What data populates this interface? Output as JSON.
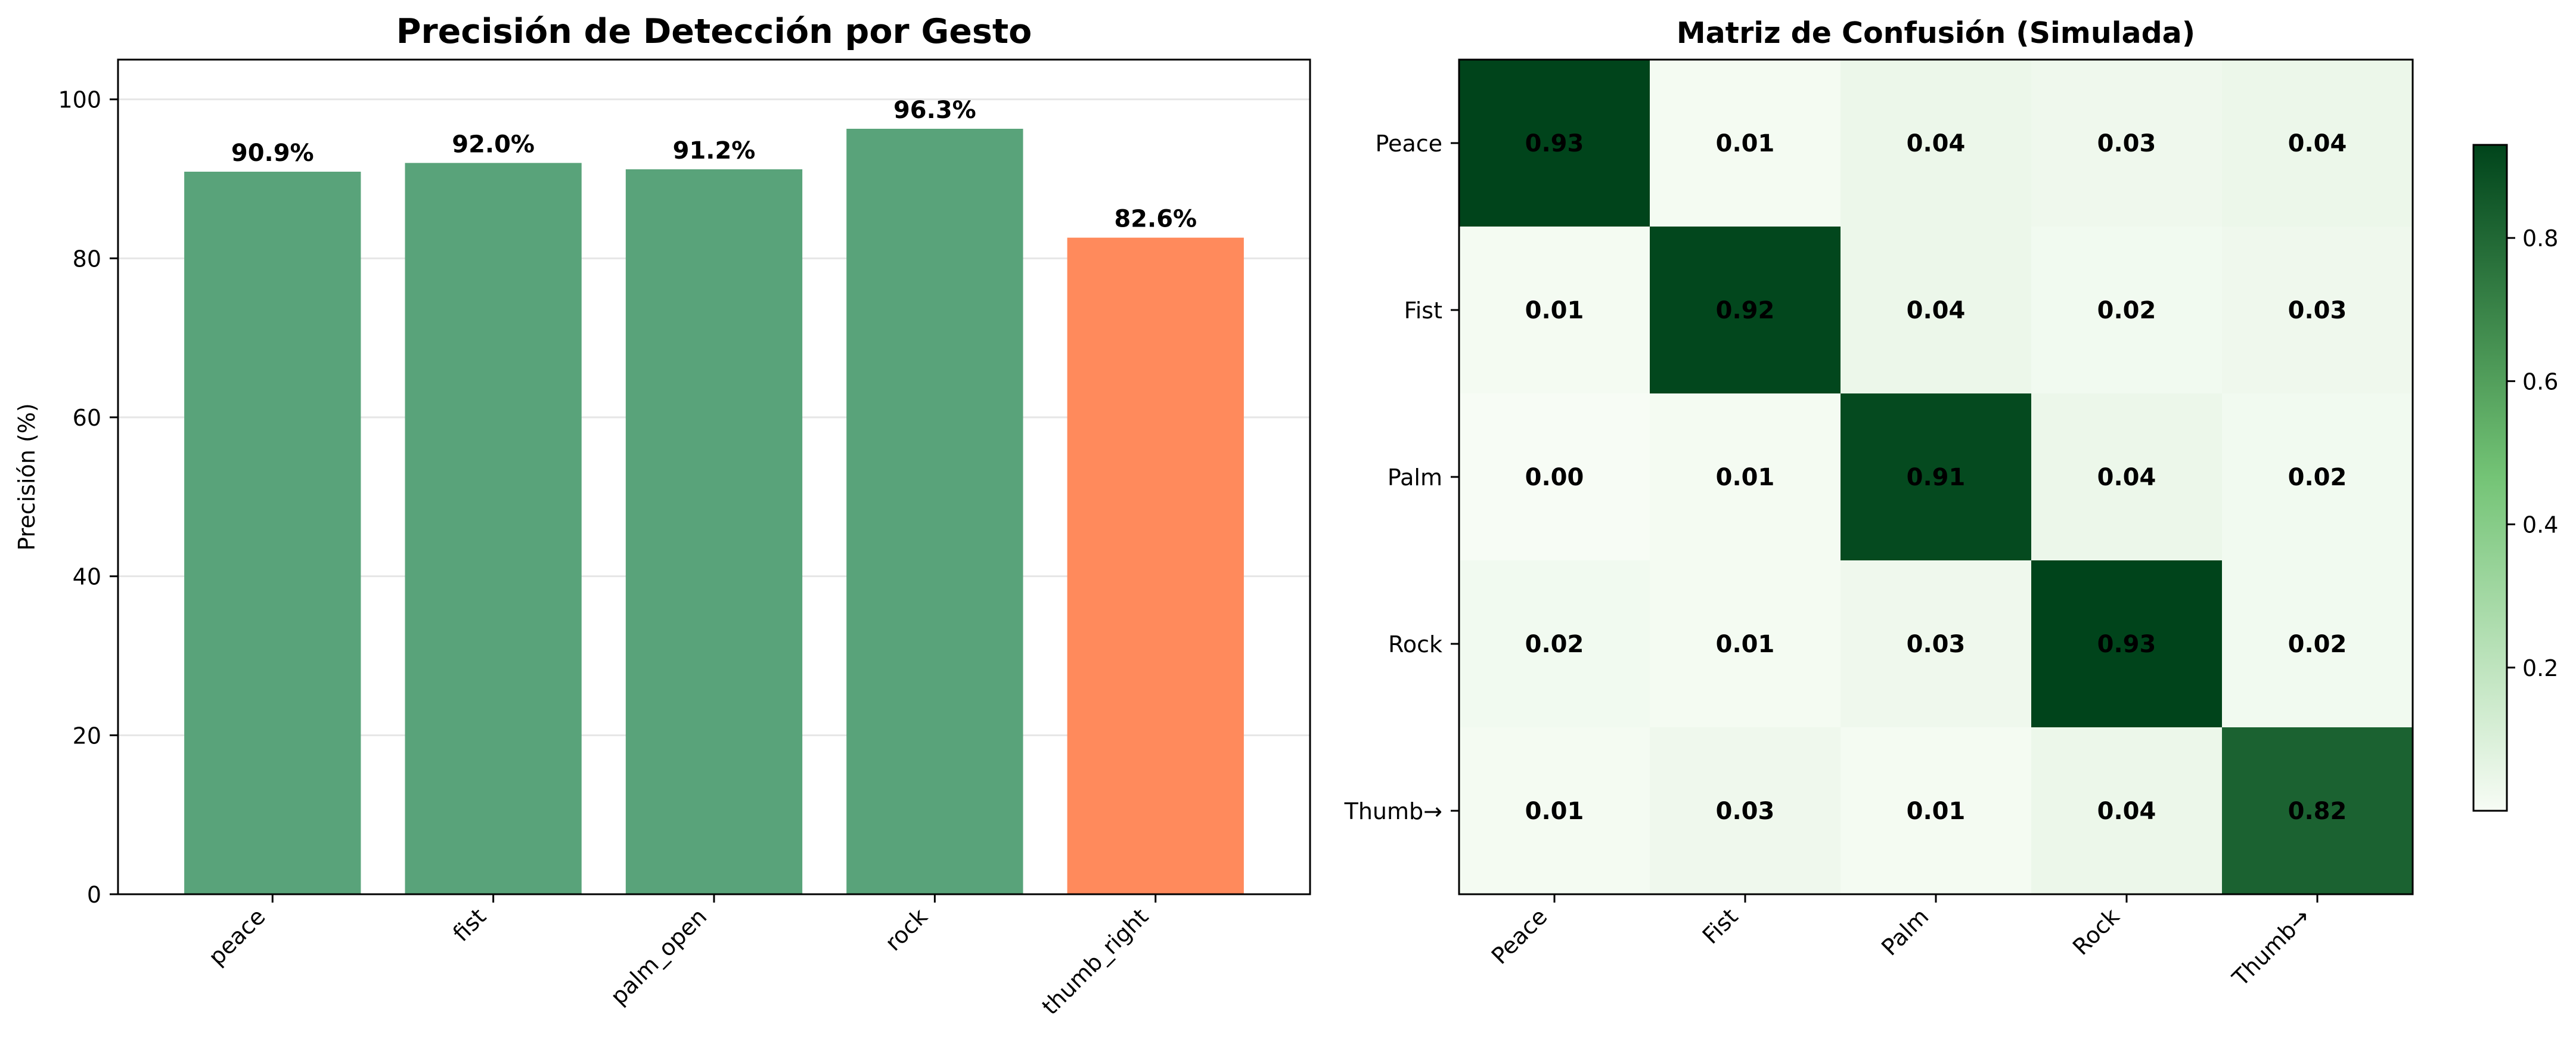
{
  "colors": {
    "bar_normal": "#59a37a",
    "bar_low": "#ff8a5c",
    "grid": "#e6e6e6",
    "axis": "#000000",
    "text": "#000000",
    "cmap_low": "#f7fcf5",
    "cmap_mid": "#74c476",
    "cmap_high": "#00441b"
  },
  "chart_data": [
    {
      "type": "bar",
      "title": "Precisión de Detección por Gesto",
      "xlabel": "",
      "ylabel": "Precisión (%)",
      "ylim": [
        0,
        105
      ],
      "yticks": [
        0,
        20,
        40,
        60,
        80,
        100
      ],
      "grid": "y",
      "categories": [
        "peace",
        "fist",
        "palm_open",
        "rock",
        "thumb_right"
      ],
      "values": [
        90.9,
        92.0,
        91.2,
        96.3,
        82.6
      ],
      "value_labels": [
        "90.9%",
        "92.0%",
        "91.2%",
        "96.3%",
        "82.6%"
      ],
      "bar_colors": [
        "bar_normal",
        "bar_normal",
        "bar_normal",
        "bar_normal",
        "bar_low"
      ]
    },
    {
      "type": "heatmap",
      "title": "Matriz de Confusión (Simulada)",
      "row_labels": [
        "Peace",
        "Fist",
        "Palm",
        "Rock",
        "Thumb→"
      ],
      "col_labels": [
        "Peace",
        "Fist",
        "Palm",
        "Rock",
        "Thumb→"
      ],
      "values": [
        [
          0.93,
          0.01,
          0.04,
          0.03,
          0.04
        ],
        [
          0.01,
          0.92,
          0.04,
          0.02,
          0.03
        ],
        [
          0.0,
          0.01,
          0.91,
          0.04,
          0.02
        ],
        [
          0.02,
          0.01,
          0.03,
          0.93,
          0.02
        ],
        [
          0.01,
          0.03,
          0.01,
          0.04,
          0.82
        ]
      ],
      "colorbar": {
        "range": [
          0.0,
          0.93
        ],
        "ticks": [
          0.2,
          0.4,
          0.6,
          0.8
        ],
        "colormap": "Greens"
      }
    }
  ]
}
